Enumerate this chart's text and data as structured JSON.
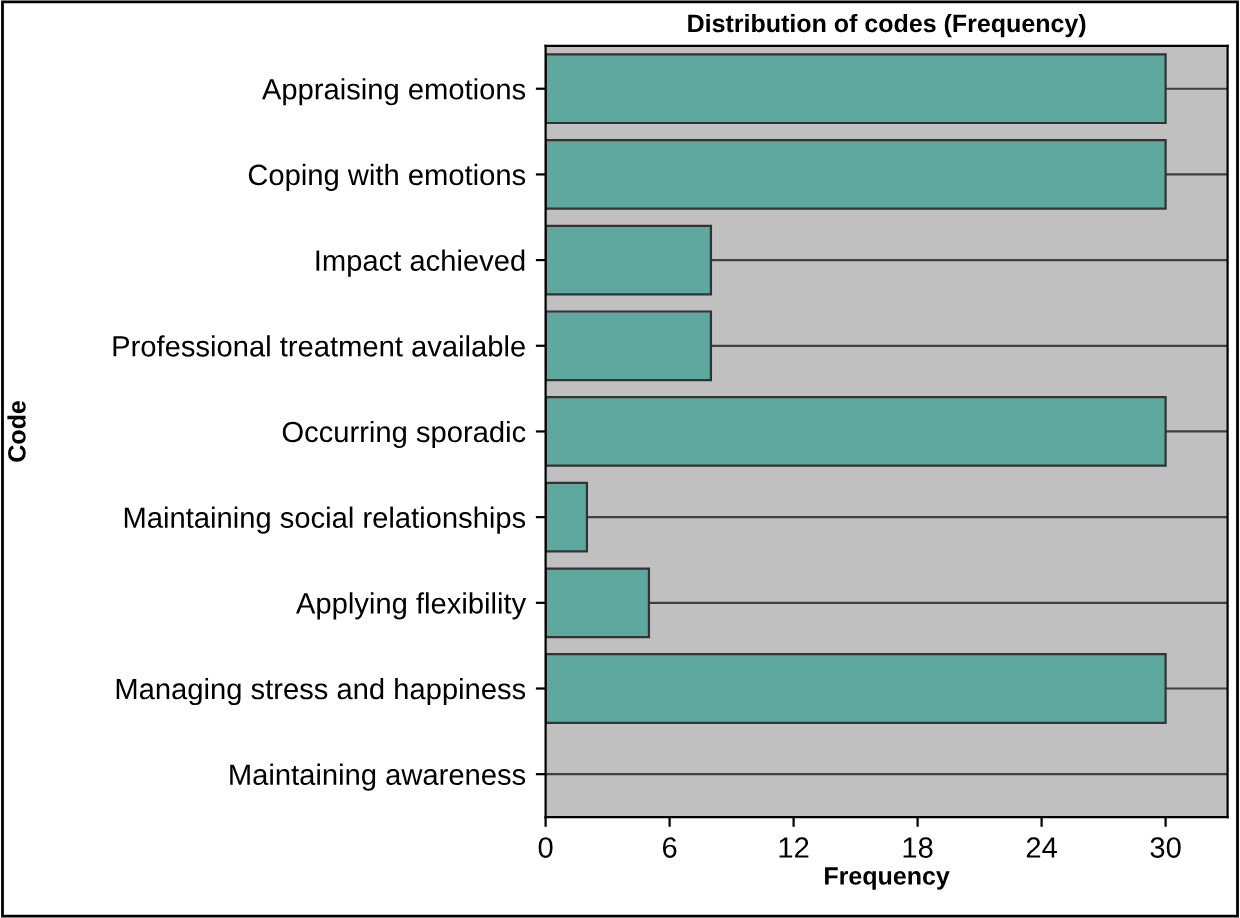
{
  "chart_data": {
    "type": "bar",
    "orientation": "horizontal",
    "title": "Distribution of codes (Frequency)",
    "xlabel": "Frequency",
    "ylabel": "Code",
    "categories": [
      "Appraising emotions",
      "Coping with emotions",
      "Impact achieved",
      "Professional treatment available",
      "Occurring sporadic",
      "Maintaining social relationships",
      "Applying flexibility",
      "Managing stress and happiness",
      "Maintaining awareness"
    ],
    "values": [
      30,
      30,
      8,
      8,
      30,
      2,
      5,
      30,
      0
    ],
    "color": "#5fa8a0",
    "xlim": [
      0,
      33
    ],
    "xticks": [
      0,
      6,
      12,
      18,
      24,
      30
    ],
    "grid": "y",
    "legend": false
  }
}
